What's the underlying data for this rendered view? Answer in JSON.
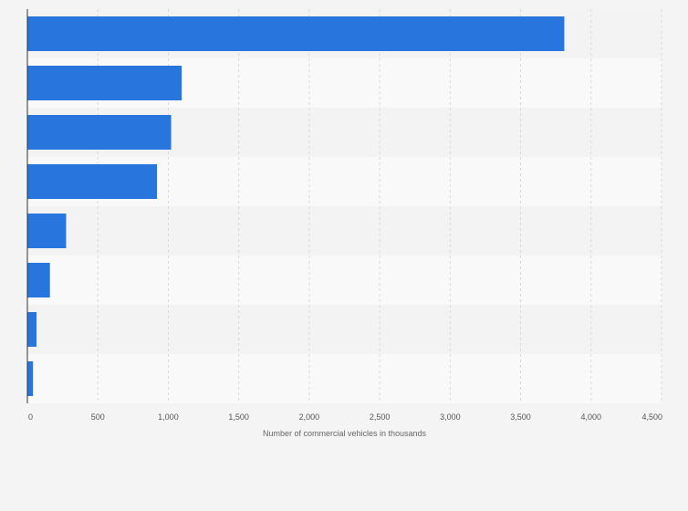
{
  "chart_data": {
    "type": "bar",
    "orientation": "horizontal",
    "title": "",
    "xlabel": "Number of commercial vehicles in thousands",
    "ylabel": "",
    "categories": [
      "",
      "",
      "",
      "",
      "",
      "",
      "",
      ""
    ],
    "values": [
      3810,
      1095,
      1020,
      920,
      275,
      160,
      65,
      40
    ],
    "xlim": [
      0,
      4500
    ],
    "xticks": [
      0,
      500,
      1000,
      1500,
      2000,
      2500,
      3000,
      3500,
      4000,
      4500
    ],
    "xtick_labels": [
      "0",
      "500",
      "1,000",
      "1,500",
      "2,000",
      "2,500",
      "3,000",
      "3,500",
      "4,000",
      "4,500"
    ],
    "grid": "vertical dashed",
    "legend": "none",
    "colors": {
      "bar": "#2876dd",
      "band_light": "#f9f9f9",
      "band_dark": "#f3f3f3",
      "grid": "#d9d9d9",
      "axis": "#333333",
      "background": "#f4f4f4"
    }
  }
}
